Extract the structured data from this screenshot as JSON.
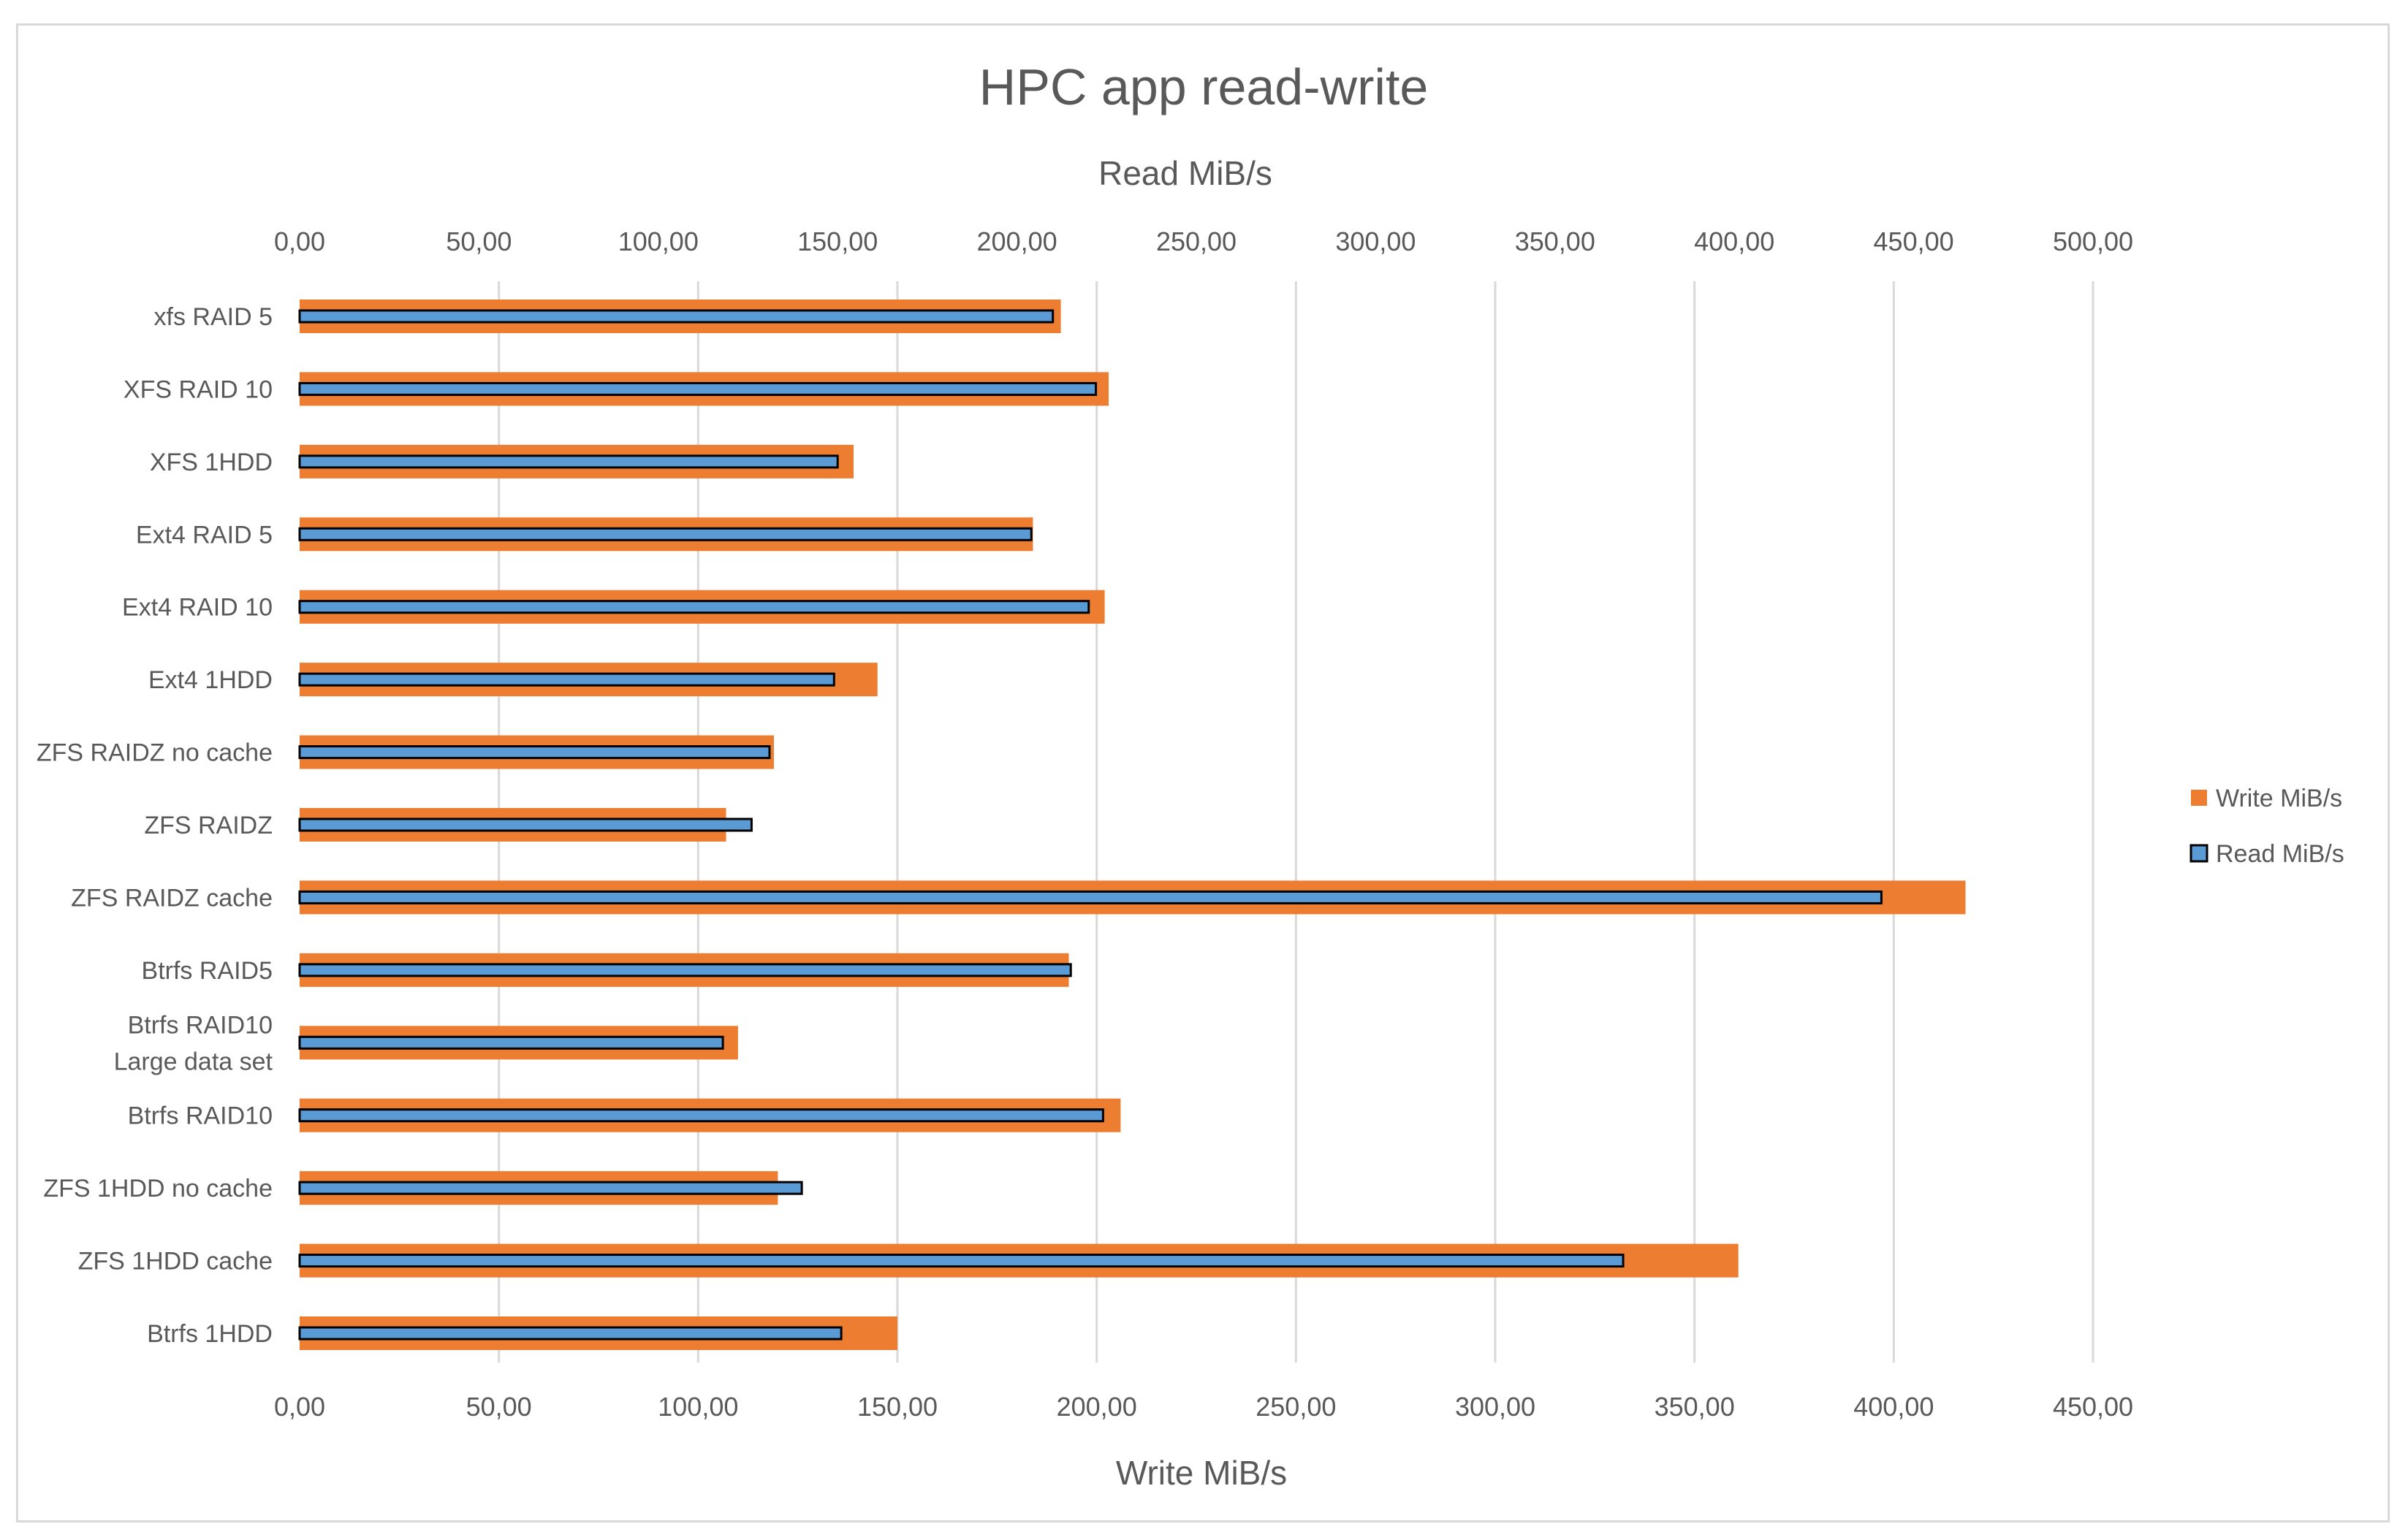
{
  "chart_data": {
    "type": "bar",
    "orientation": "horizontal",
    "title": "HPC app read-write",
    "categories": [
      "xfs  RAID 5",
      "XFS  RAID 10",
      "XFS 1HDD",
      "Ext4  RAID 5",
      "Ext4  RAID 10",
      "Ext4 1HDD",
      "ZFS RAIDZ no cache",
      "ZFS RAIDZ",
      "ZFS RAIDZ cache",
      "Btrfs RAID5",
      "Btrfs RAID10 Large data set",
      "Btrfs RAID10",
      "ZFS 1HDD no cache",
      "ZFS 1HDD cache",
      "Btrfs 1HDD"
    ],
    "series": [
      {
        "name": "Write MiB/s",
        "color": "#ed7d31",
        "axis": "bottom",
        "values": [
          191,
          203,
          139,
          184,
          202,
          145,
          119,
          107,
          418,
          193,
          110,
          206,
          120,
          361,
          150
        ]
      },
      {
        "name": "Read MiB/s",
        "color": "#5b9bd5",
        "axis": "top",
        "values": [
          210,
          222,
          150,
          204,
          220,
          149,
          131,
          126,
          441,
          215,
          118,
          224,
          140,
          369,
          151
        ]
      }
    ],
    "bottom_axis": {
      "label": "Write MiB/s",
      "range": [
        0,
        450
      ],
      "ticks": [
        0,
        50,
        100,
        150,
        200,
        250,
        300,
        350,
        400,
        450
      ],
      "tick_labels": [
        "0,00",
        "50,00",
        "100,00",
        "150,00",
        "200,00",
        "250,00",
        "300,00",
        "350,00",
        "400,00",
        "450,00"
      ]
    },
    "top_axis": {
      "label": "Read MiB/s",
      "range": [
        0,
        500
      ],
      "ticks": [
        0,
        50,
        100,
        150,
        200,
        250,
        300,
        350,
        400,
        450,
        500
      ],
      "tick_labels": [
        "0,00",
        "50,00",
        "100,00",
        "150,00",
        "200,00",
        "250,00",
        "300,00",
        "350,00",
        "400,00",
        "450,00",
        "500,00"
      ]
    },
    "grid": "vertical",
    "legend_position": "right",
    "colors": {
      "write": "#ed7d31",
      "read": "#5b9bd5",
      "read_border": "#000000",
      "grid": "#d9d9d9",
      "text": "#595959"
    }
  }
}
